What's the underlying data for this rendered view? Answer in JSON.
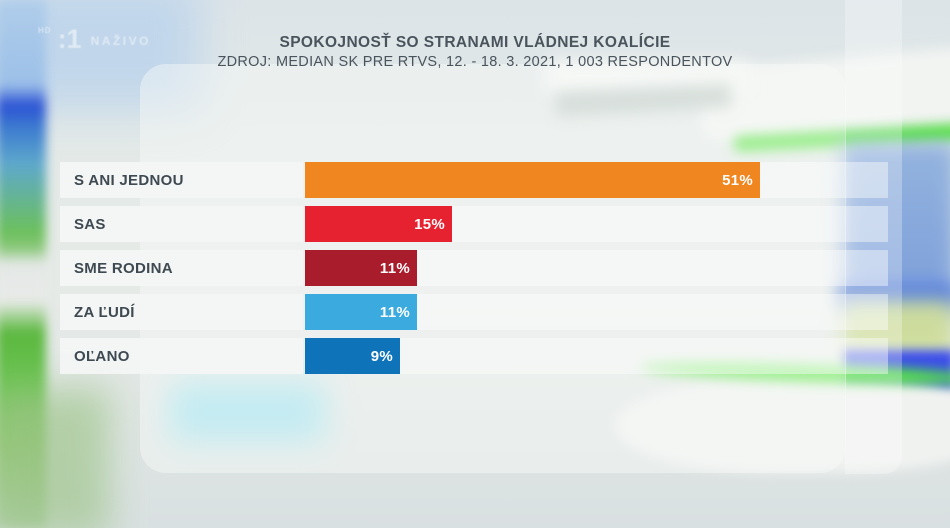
{
  "watermark": {
    "hd_label": "HD",
    "channel_logo": ":1",
    "live_label": "NAŽIVO"
  },
  "header": {
    "title": "SPOKOJNOSŤ SO STRANAMI VLÁDNEJ KOALÍCIE",
    "subtitle": "ZDROJ: MEDIAN SK PRE RTVS, 12. - 18. 3. 2021, 1 003 RESPONDENTOV"
  },
  "chart_data": {
    "type": "bar",
    "orientation": "horizontal",
    "title": "SPOKOJNOSŤ SO STRANAMI VLÁDNEJ KOALÍCIE",
    "source": "ZDROJ: MEDIAN SK PRE RTVS, 12. - 18. 3. 2021, 1 003 RESPONDENTOV",
    "unit": "%",
    "xlim": [
      0,
      55
    ],
    "grid": false,
    "legend": false,
    "categories": [
      "S ANI JEDNOU",
      "SAS",
      "SME RODINA",
      "ZA ĽUDÍ",
      "OĽANO"
    ],
    "values": [
      51,
      15,
      11,
      11,
      9
    ],
    "value_labels": [
      "51%",
      "15%",
      "11%",
      "11%",
      "9%"
    ],
    "bar_colors": [
      "#F0861F",
      "#E62230",
      "#A81C2C",
      "#3BAADE",
      "#0E73B8"
    ]
  },
  "colors": {
    "accent_green": "#55E83C",
    "accent_blue": "#3446EC",
    "title_text": "#4A545D",
    "label_text": "#3E4951",
    "value_text": "#FFFFFF"
  }
}
